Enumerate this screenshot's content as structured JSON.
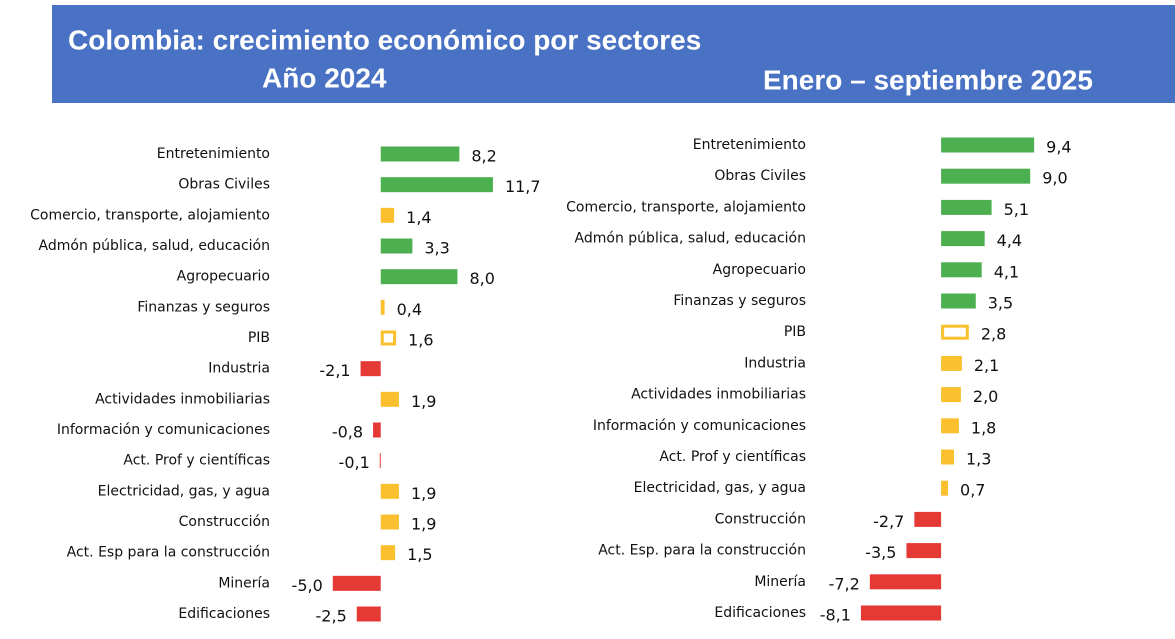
{
  "header": {
    "title": "Colombia: crecimiento económico por sectores"
  },
  "chart_data": [
    {
      "type": "hbar",
      "title": "Año 2024",
      "categories": [
        "Entretenimiento",
        "Obras Civiles",
        "Comercio, transporte, alojamiento",
        "Admón pública, salud, educación",
        "Agropecuario",
        "Finanzas y seguros",
        "PIB",
        "Industria",
        "Actividades inmobiliarias",
        "Información y comunicaciones",
        "Act. Prof y científicas",
        "Electricidad, gas, y agua",
        "Construcción",
        "Act. Esp para la construcción",
        "Minería",
        "Edificaciones"
      ],
      "values": [
        8.2,
        11.7,
        1.4,
        3.3,
        8.0,
        0.4,
        1.6,
        -2.1,
        1.9,
        -0.8,
        -0.1,
        1.9,
        1.9,
        1.5,
        -5.0,
        -2.5
      ],
      "value_labels": [
        "8,2",
        "11,7",
        "1,4",
        "3,3",
        "8,0",
        "0,4",
        "1,6",
        "-2,1",
        "1,9",
        "-0,8",
        "-0,1",
        "1,9",
        "1,9",
        "1,5",
        "-5,0",
        "-2,5"
      ],
      "colors": [
        "#4caf50",
        "#4caf50",
        "#fbc02d",
        "#4caf50",
        "#4caf50",
        "#fbc02d",
        "#fbc02d",
        "#e53935",
        "#fbc02d",
        "#e53935",
        "#e53935",
        "#fbc02d",
        "#fbc02d",
        "#fbc02d",
        "#e53935",
        "#e53935"
      ],
      "hollow_index": 6,
      "xlim": [
        -8,
        14
      ]
    },
    {
      "type": "hbar",
      "title": "Enero – septiembre 2025",
      "categories": [
        "Entretenimiento",
        "Obras Civiles",
        "Comercio, transporte, alojamiento",
        "Admón pública, salud, educación",
        "Agropecuario",
        "Finanzas y seguros",
        "PIB",
        "Industria",
        "Actividades inmobiliarias",
        "Información y comunicaciones",
        "Act. Prof y científicas",
        "Electricidad, gas, y agua",
        "Construcción",
        "Act. Esp. para la construcción",
        "Minería",
        "Edificaciones"
      ],
      "values": [
        9.4,
        9.0,
        5.1,
        4.4,
        4.1,
        3.5,
        2.8,
        2.1,
        2.0,
        1.8,
        1.3,
        0.7,
        -2.7,
        -3.5,
        -7.2,
        -8.1
      ],
      "value_labels": [
        "9,4",
        "9,0",
        "5,1",
        "4,4",
        "4,1",
        "3,5",
        "2,8",
        "2,1",
        "2,0",
        "1,8",
        "1,3",
        "0,7",
        "-2,7",
        "-3,5",
        "-7,2",
        "-8,1"
      ],
      "colors": [
        "#4caf50",
        "#4caf50",
        "#4caf50",
        "#4caf50",
        "#4caf50",
        "#4caf50",
        "#fbc02d",
        "#fbc02d",
        "#fbc02d",
        "#fbc02d",
        "#fbc02d",
        "#fbc02d",
        "#e53935",
        "#e53935",
        "#e53935",
        "#e53935"
      ],
      "hollow_index": 6,
      "xlim": [
        -9,
        11
      ]
    }
  ]
}
